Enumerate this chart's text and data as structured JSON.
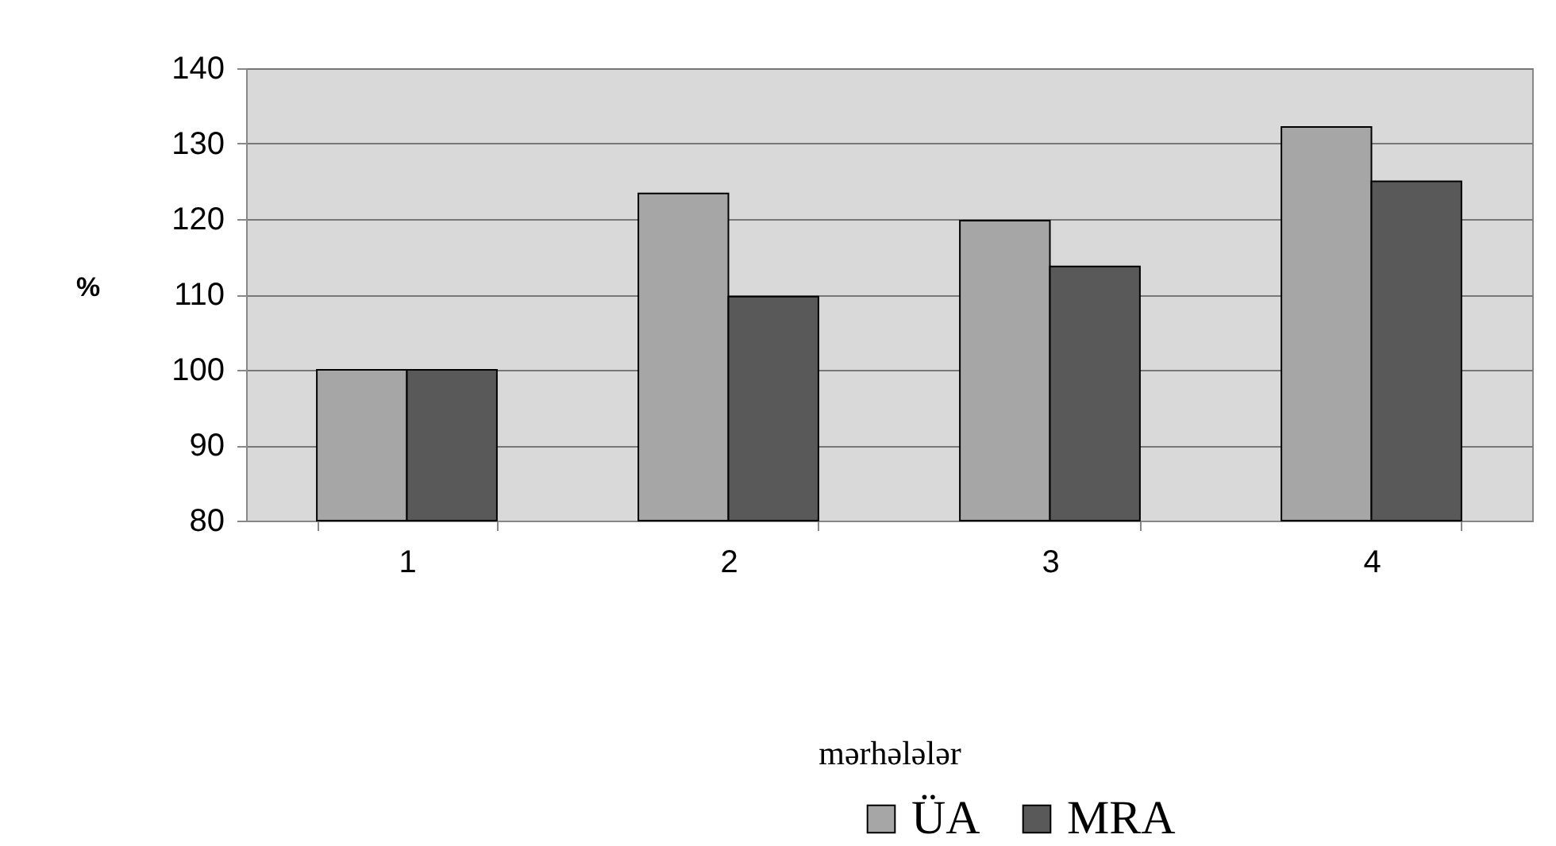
{
  "chart_data": {
    "type": "bar",
    "categories": [
      "1",
      "2",
      "3",
      "4"
    ],
    "xlabel": "mərhələlər",
    "ylabel": "%",
    "ylim": [
      80,
      140
    ],
    "yticks": [
      80,
      90,
      100,
      110,
      120,
      130,
      140
    ],
    "grid": "y",
    "legend": "bottom",
    "series": [
      {
        "name": "ÜA",
        "color": "#a6a6a6",
        "values": [
          100,
          123.4,
          119.8,
          132.2
        ]
      },
      {
        "name": "MRA",
        "color": "#595959",
        "values": [
          100,
          109.7,
          113.7,
          125
        ]
      }
    ]
  }
}
